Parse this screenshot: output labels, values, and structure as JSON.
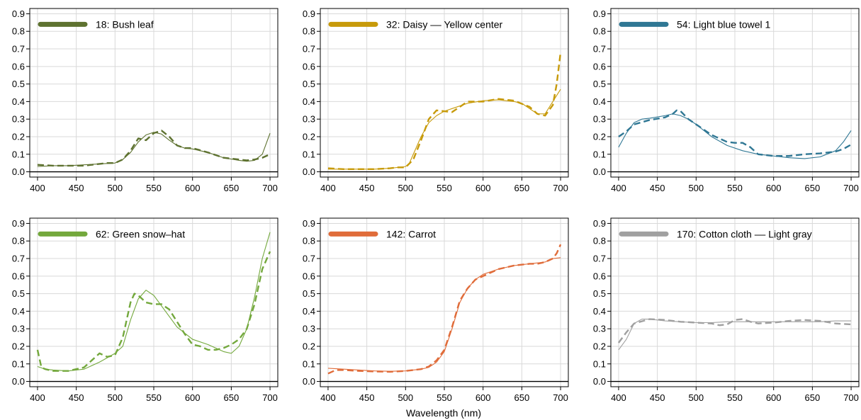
{
  "figure": {
    "xlabel": "Wavelength (nm)"
  },
  "chart_data": [
    {
      "type": "line",
      "legend": "18:  Bush leaf",
      "color": "#5e7230",
      "xlim": [
        390,
        710
      ],
      "ylim": [
        -0.03,
        0.93
      ],
      "xticks": [
        400,
        450,
        500,
        550,
        600,
        650,
        700
      ],
      "yticks": [
        0.0,
        0.1,
        0.2,
        0.3,
        0.4,
        0.5,
        0.6,
        0.7,
        0.8,
        0.9
      ],
      "series": [
        {
          "style": "solid",
          "x": [
            400,
            420,
            440,
            460,
            480,
            500,
            510,
            520,
            530,
            540,
            550,
            560,
            570,
            580,
            590,
            600,
            620,
            640,
            660,
            670,
            680,
            690,
            700
          ],
          "y": [
            0.03,
            0.035,
            0.035,
            0.04,
            0.045,
            0.05,
            0.07,
            0.11,
            0.17,
            0.21,
            0.225,
            0.215,
            0.18,
            0.15,
            0.135,
            0.13,
            0.11,
            0.08,
            0.065,
            0.06,
            0.065,
            0.1,
            0.22
          ]
        },
        {
          "style": "dashed",
          "x": [
            400,
            420,
            440,
            460,
            480,
            490,
            500,
            510,
            520,
            530,
            540,
            550,
            560,
            570,
            580,
            590,
            600,
            620,
            640,
            660,
            670,
            680,
            690,
            700
          ],
          "y": [
            0.04,
            0.035,
            0.035,
            0.035,
            0.045,
            0.05,
            0.05,
            0.07,
            0.12,
            0.19,
            0.18,
            0.22,
            0.235,
            0.2,
            0.15,
            0.135,
            0.135,
            0.11,
            0.08,
            0.07,
            0.065,
            0.07,
            0.08,
            0.1
          ]
        }
      ]
    },
    {
      "type": "line",
      "legend": "32:  Daisy –– Yellow center",
      "color": "#c79a0a",
      "xlim": [
        390,
        710
      ],
      "ylim": [
        -0.03,
        0.93
      ],
      "xticks": [
        400,
        450,
        500,
        550,
        600,
        650,
        700
      ],
      "yticks": [
        0.0,
        0.1,
        0.2,
        0.3,
        0.4,
        0.5,
        0.6,
        0.7,
        0.8,
        0.9
      ],
      "series": [
        {
          "style": "solid",
          "x": [
            400,
            420,
            440,
            460,
            480,
            490,
            500,
            505,
            510,
            520,
            530,
            540,
            550,
            560,
            580,
            600,
            620,
            640,
            650,
            660,
            670,
            680,
            690,
            700
          ],
          "y": [
            0.015,
            0.015,
            0.015,
            0.015,
            0.02,
            0.025,
            0.03,
            0.05,
            0.1,
            0.2,
            0.28,
            0.32,
            0.345,
            0.36,
            0.39,
            0.405,
            0.41,
            0.4,
            0.39,
            0.36,
            0.33,
            0.33,
            0.4,
            0.47
          ]
        },
        {
          "style": "dashed",
          "x": [
            400,
            420,
            440,
            460,
            480,
            490,
            500,
            510,
            520,
            530,
            540,
            550,
            560,
            570,
            580,
            600,
            620,
            640,
            660,
            670,
            680,
            690,
            695,
            700
          ],
          "y": [
            0.02,
            0.015,
            0.015,
            0.015,
            0.02,
            0.025,
            0.025,
            0.07,
            0.18,
            0.3,
            0.35,
            0.345,
            0.34,
            0.37,
            0.4,
            0.4,
            0.415,
            0.405,
            0.37,
            0.33,
            0.32,
            0.38,
            0.5,
            0.68
          ]
        }
      ]
    },
    {
      "type": "line",
      "legend": "54:  Light blue towel 1",
      "color": "#2f7794",
      "xlim": [
        390,
        710
      ],
      "ylim": [
        -0.03,
        0.93
      ],
      "xticks": [
        400,
        450,
        500,
        550,
        600,
        650,
        700
      ],
      "yticks": [
        0.0,
        0.1,
        0.2,
        0.3,
        0.4,
        0.5,
        0.6,
        0.7,
        0.8,
        0.9
      ],
      "series": [
        {
          "style": "solid",
          "x": [
            400,
            410,
            420,
            430,
            440,
            460,
            470,
            480,
            490,
            500,
            520,
            540,
            560,
            580,
            600,
            620,
            640,
            660,
            680,
            690,
            700
          ],
          "y": [
            0.14,
            0.22,
            0.28,
            0.3,
            0.305,
            0.32,
            0.33,
            0.32,
            0.3,
            0.27,
            0.2,
            0.15,
            0.12,
            0.1,
            0.09,
            0.08,
            0.075,
            0.085,
            0.12,
            0.17,
            0.235
          ]
        },
        {
          "style": "dashed",
          "x": [
            400,
            410,
            420,
            440,
            460,
            470,
            475,
            480,
            490,
            500,
            510,
            520,
            530,
            540,
            550,
            560,
            570,
            580,
            600,
            620,
            640,
            660,
            680,
            690,
            700
          ],
          "y": [
            0.2,
            0.23,
            0.27,
            0.295,
            0.31,
            0.33,
            0.35,
            0.345,
            0.3,
            0.27,
            0.24,
            0.21,
            0.19,
            0.17,
            0.165,
            0.165,
            0.14,
            0.1,
            0.09,
            0.09,
            0.1,
            0.105,
            0.115,
            0.13,
            0.155
          ]
        }
      ]
    },
    {
      "type": "line",
      "legend": "62:  Green snow–hat",
      "color": "#73a83c",
      "xlim": [
        390,
        710
      ],
      "ylim": [
        -0.03,
        0.93
      ],
      "xticks": [
        400,
        450,
        500,
        550,
        600,
        650,
        700
      ],
      "yticks": [
        0.0,
        0.1,
        0.2,
        0.3,
        0.4,
        0.5,
        0.6,
        0.7,
        0.8,
        0.9
      ],
      "series": [
        {
          "style": "solid",
          "x": [
            400,
            410,
            420,
            440,
            460,
            480,
            500,
            510,
            520,
            530,
            540,
            550,
            560,
            570,
            580,
            600,
            620,
            640,
            650,
            660,
            670,
            680,
            690,
            700
          ],
          "y": [
            0.085,
            0.07,
            0.065,
            0.06,
            0.07,
            0.11,
            0.16,
            0.2,
            0.35,
            0.47,
            0.52,
            0.49,
            0.43,
            0.37,
            0.31,
            0.24,
            0.21,
            0.17,
            0.16,
            0.2,
            0.3,
            0.48,
            0.7,
            0.85
          ]
        },
        {
          "style": "dashed",
          "x": [
            400,
            405,
            410,
            420,
            440,
            460,
            470,
            480,
            490,
            500,
            510,
            520,
            525,
            530,
            540,
            550,
            560,
            570,
            580,
            590,
            600,
            610,
            620,
            630,
            640,
            650,
            660,
            670,
            680,
            690,
            700
          ],
          "y": [
            0.18,
            0.08,
            0.07,
            0.06,
            0.06,
            0.08,
            0.12,
            0.16,
            0.14,
            0.15,
            0.25,
            0.45,
            0.5,
            0.49,
            0.45,
            0.44,
            0.44,
            0.41,
            0.34,
            0.27,
            0.21,
            0.2,
            0.18,
            0.18,
            0.19,
            0.21,
            0.24,
            0.3,
            0.44,
            0.64,
            0.74
          ]
        }
      ]
    },
    {
      "type": "line",
      "legend": "142:  Carrot",
      "color": "#e06c3a",
      "xlim": [
        390,
        710
      ],
      "ylim": [
        -0.03,
        0.93
      ],
      "xticks": [
        400,
        450,
        500,
        550,
        600,
        650,
        700
      ],
      "yticks": [
        0.0,
        0.1,
        0.2,
        0.3,
        0.4,
        0.5,
        0.6,
        0.7,
        0.8,
        0.9
      ],
      "series": [
        {
          "style": "solid",
          "x": [
            400,
            420,
            440,
            460,
            480,
            500,
            520,
            530,
            540,
            550,
            560,
            570,
            580,
            590,
            600,
            620,
            640,
            660,
            680,
            690,
            700
          ],
          "y": [
            0.075,
            0.07,
            0.065,
            0.06,
            0.058,
            0.06,
            0.07,
            0.08,
            0.11,
            0.17,
            0.3,
            0.45,
            0.53,
            0.58,
            0.61,
            0.64,
            0.66,
            0.67,
            0.68,
            0.7,
            0.705
          ]
        },
        {
          "style": "dashed",
          "x": [
            400,
            410,
            420,
            440,
            460,
            480,
            500,
            520,
            530,
            540,
            550,
            560,
            570,
            580,
            590,
            600,
            620,
            640,
            660,
            670,
            680,
            690,
            695,
            700
          ],
          "y": [
            0.045,
            0.065,
            0.065,
            0.06,
            0.057,
            0.055,
            0.06,
            0.07,
            0.085,
            0.12,
            0.18,
            0.31,
            0.46,
            0.53,
            0.58,
            0.6,
            0.64,
            0.66,
            0.67,
            0.67,
            0.68,
            0.7,
            0.73,
            0.78
          ]
        }
      ]
    },
    {
      "type": "line",
      "legend": "170:  Cotton cloth –– Light gray",
      "color": "#a0a0a0",
      "xlim": [
        390,
        710
      ],
      "ylim": [
        -0.03,
        0.93
      ],
      "xticks": [
        400,
        450,
        500,
        550,
        600,
        650,
        700
      ],
      "yticks": [
        0.0,
        0.1,
        0.2,
        0.3,
        0.4,
        0.5,
        0.6,
        0.7,
        0.8,
        0.9
      ],
      "series": [
        {
          "style": "solid",
          "x": [
            400,
            410,
            420,
            430,
            440,
            460,
            480,
            500,
            520,
            540,
            560,
            580,
            600,
            620,
            640,
            660,
            680,
            700
          ],
          "y": [
            0.18,
            0.24,
            0.33,
            0.355,
            0.355,
            0.345,
            0.34,
            0.335,
            0.335,
            0.34,
            0.34,
            0.34,
            0.34,
            0.34,
            0.34,
            0.34,
            0.345,
            0.345
          ]
        },
        {
          "style": "dashed",
          "x": [
            400,
            410,
            420,
            440,
            460,
            480,
            500,
            520,
            530,
            540,
            550,
            560,
            570,
            580,
            600,
            620,
            640,
            660,
            680,
            700
          ],
          "y": [
            0.22,
            0.28,
            0.33,
            0.355,
            0.35,
            0.34,
            0.335,
            0.33,
            0.32,
            0.325,
            0.35,
            0.355,
            0.34,
            0.33,
            0.335,
            0.345,
            0.35,
            0.345,
            0.33,
            0.325
          ]
        }
      ]
    }
  ]
}
